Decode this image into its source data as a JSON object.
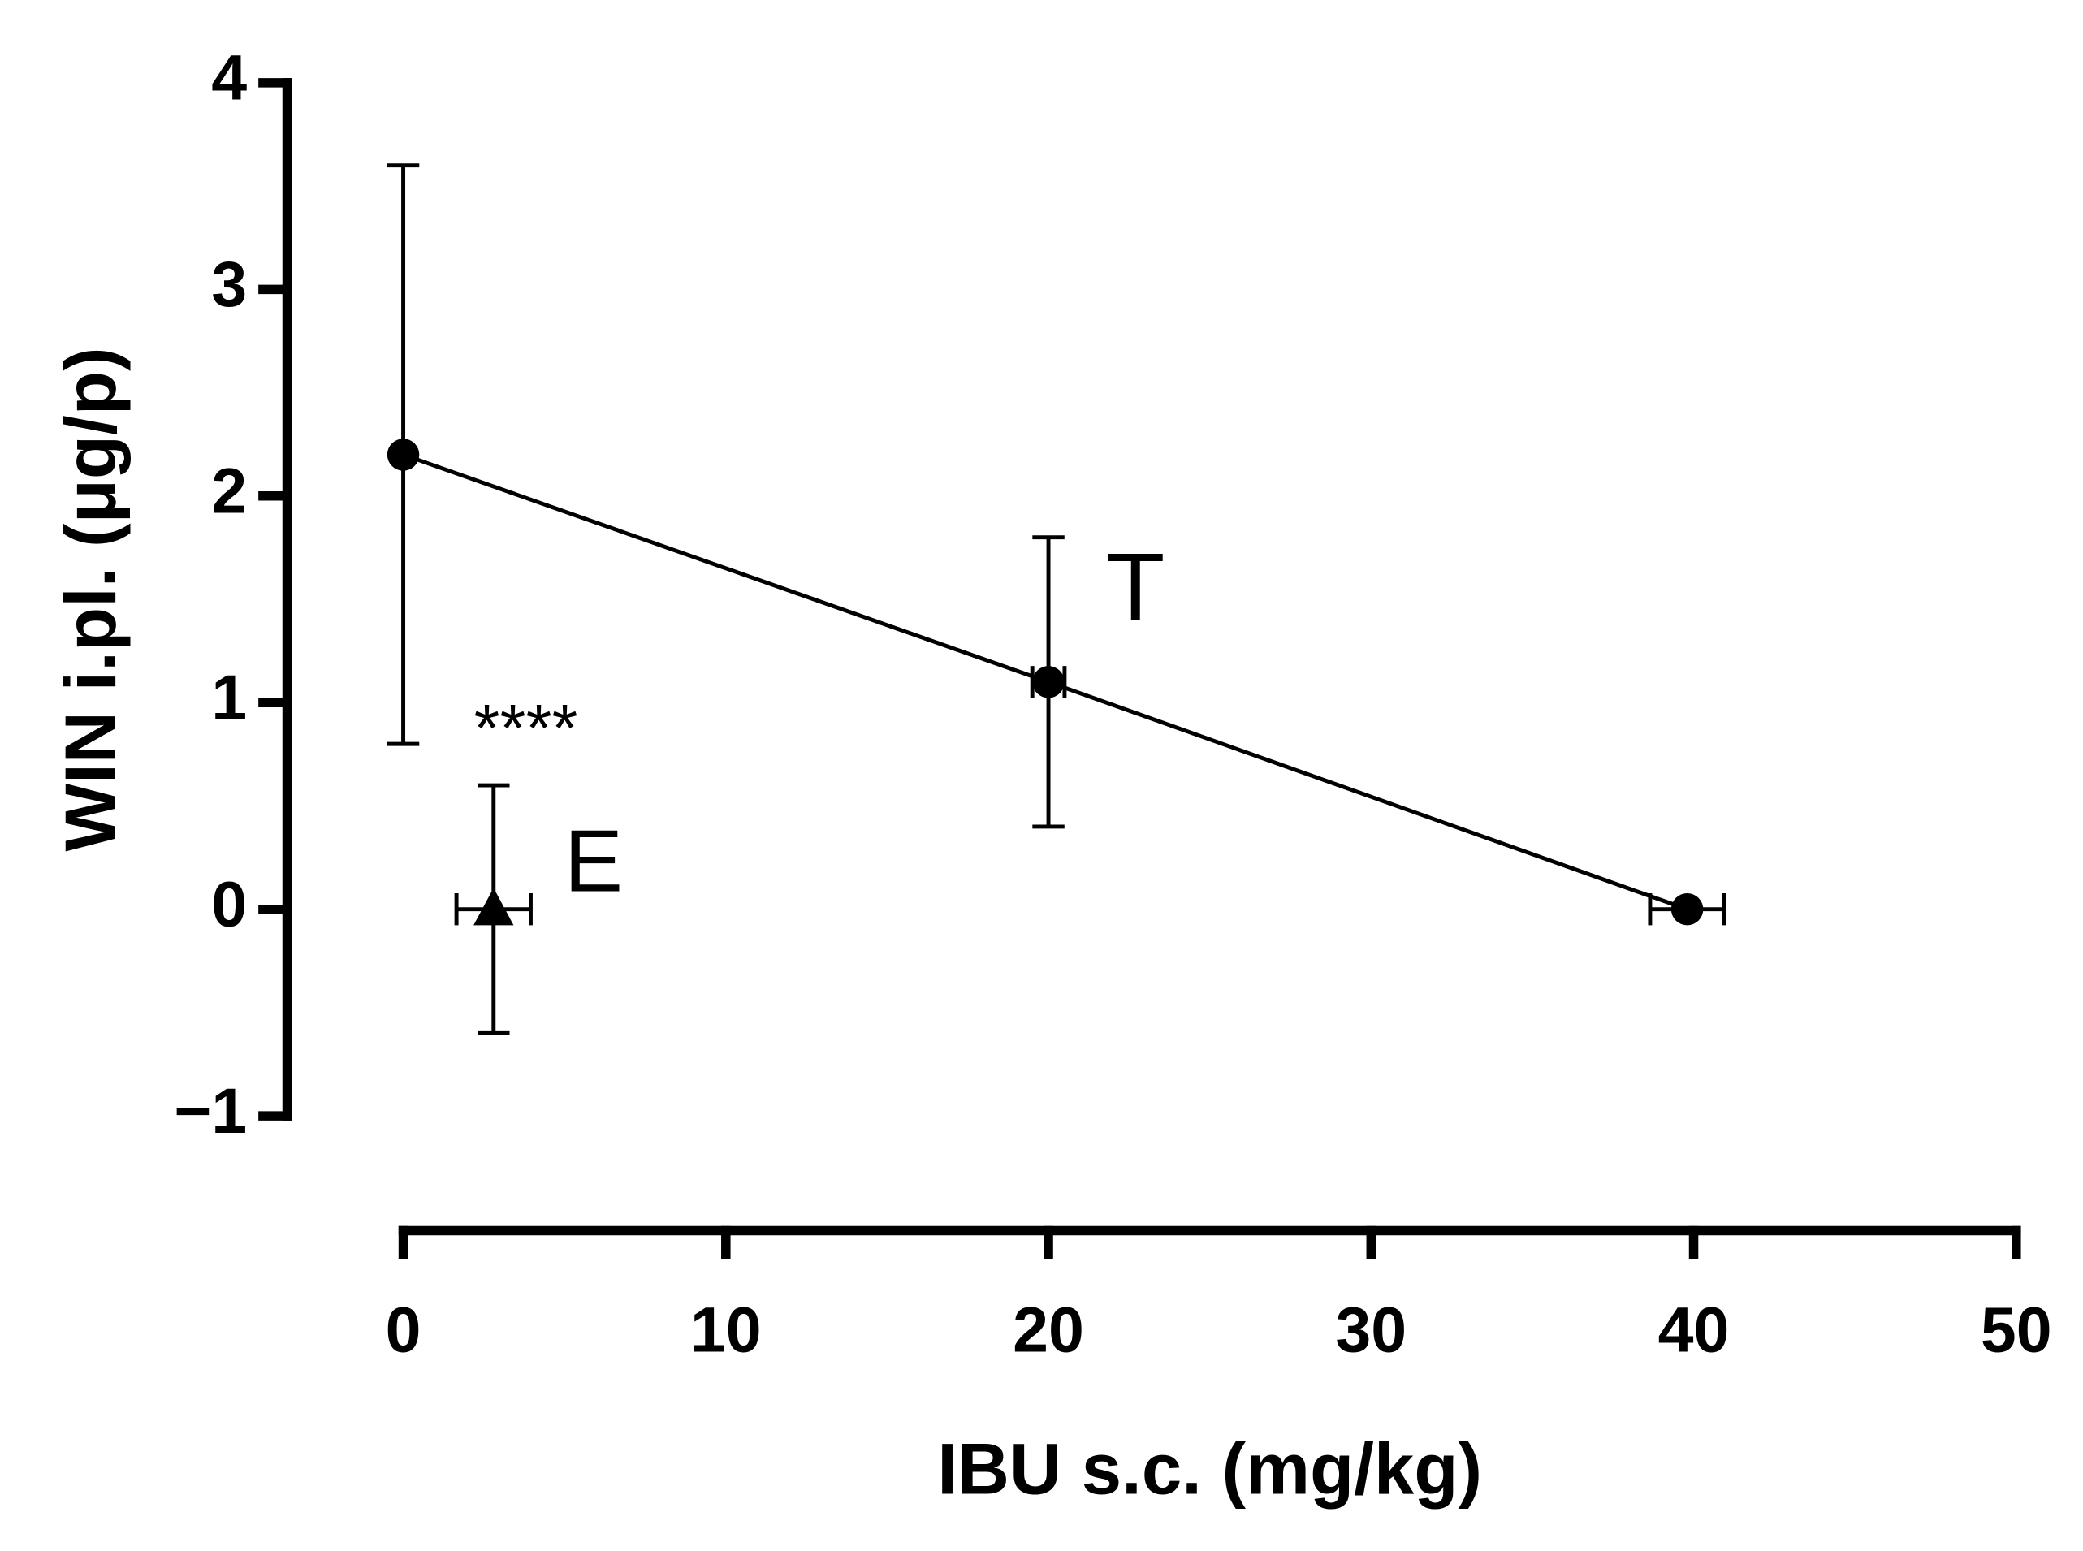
{
  "chart_data": {
    "type": "scatter",
    "x_label": "IBU s.c. (mg/kg)",
    "y_label": "WIN  i.pl. (μg/p)",
    "xlim": [
      0,
      50
    ],
    "xticks": [
      0,
      10,
      20,
      30,
      40,
      50
    ],
    "ylim": [
      -1,
      4
    ],
    "yticks": [
      {
        "value": -1,
        "label": "−1"
      },
      0,
      1,
      2,
      3,
      4
    ],
    "grid": false,
    "series": [
      {
        "color": "#000000",
        "marker": "circle",
        "line": true,
        "x": [
          0,
          20,
          39.8
        ],
        "values": [
          2.2,
          1.1,
          0
        ],
        "y_errors": [
          1.4,
          0.7,
          0
        ],
        "x_errors": [
          0,
          0.5,
          1.15
        ]
      },
      {
        "color": "#000000",
        "marker": "triangle",
        "line": false,
        "x": [
          2.8
        ],
        "values": [
          0
        ],
        "y_errors": [
          0.6
        ],
        "x_errors": [
          1.15
        ]
      }
    ],
    "annotations": [
      {
        "text": "T",
        "x": 22.7,
        "y": 1.52,
        "size": 72
      },
      {
        "text": "E",
        "x": 5.9,
        "y": 0.2,
        "size": 66
      },
      {
        "text": "****",
        "x": 3.8,
        "y": 0.85,
        "size": 50
      }
    ]
  }
}
